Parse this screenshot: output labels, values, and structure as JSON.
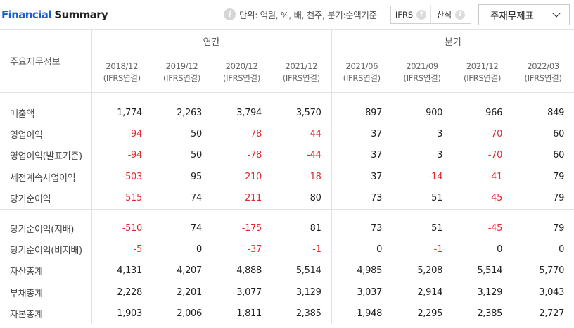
{
  "header": {
    "title_part1": "Financial",
    "title_part2": " Summary",
    "info_icon": "info-icon",
    "unit_text": "단위: 억원, %, 배, 천주, 분기:순액기준",
    "toggle_ifrs": "IFRS",
    "toggle_sansik": "산식",
    "help_icon": "?",
    "statement_select": "주재무제표"
  },
  "table": {
    "corner_label": "주요재무정보",
    "group_annual": "연간",
    "group_quarter": "분기",
    "periods": [
      {
        "date": "2018/12",
        "basis": "(IFRS연결)"
      },
      {
        "date": "2019/12",
        "basis": "(IFRS연결)"
      },
      {
        "date": "2020/12",
        "basis": "(IFRS연결)"
      },
      {
        "date": "2021/12",
        "basis": "(IFRS연결)"
      },
      {
        "date": "2021/06",
        "basis": "(IFRS연결)"
      },
      {
        "date": "2021/09",
        "basis": "(IFRS연결)"
      },
      {
        "date": "2021/12",
        "basis": "(IFRS연결)"
      },
      {
        "date": "2022/03",
        "basis": "(IFRS연결)"
      }
    ],
    "rows": [
      {
        "label": "매출액",
        "values": [
          "1,774",
          "2,263",
          "3,794",
          "3,570",
          "897",
          "900",
          "966",
          "849"
        ]
      },
      {
        "label": "영업이익",
        "values": [
          "-94",
          "50",
          "-78",
          "-44",
          "37",
          "3",
          "-70",
          "60"
        ]
      },
      {
        "label": "영업이익(발표기준)",
        "values": [
          "-94",
          "50",
          "-78",
          "-44",
          "37",
          "3",
          "-70",
          "60"
        ]
      },
      {
        "label": "세전계속사업이익",
        "values": [
          "-503",
          "95",
          "-210",
          "-18",
          "37",
          "-14",
          "-41",
          "79"
        ]
      },
      {
        "label": "당기순이익",
        "values": [
          "-515",
          "74",
          "-211",
          "80",
          "73",
          "51",
          "-45",
          "79"
        ]
      },
      {
        "label": "당기순이익(지배)",
        "values": [
          "-510",
          "74",
          "-175",
          "81",
          "73",
          "51",
          "-45",
          "79"
        ]
      },
      {
        "label": "당기순이익(비지배)",
        "values": [
          "-5",
          "0",
          "-37",
          "-1",
          "0",
          "-1",
          "0",
          "0"
        ]
      },
      {
        "label": "자산총계",
        "values": [
          "4,131",
          "4,207",
          "4,888",
          "5,514",
          "4,985",
          "5,208",
          "5,514",
          "5,770"
        ]
      },
      {
        "label": "부채총계",
        "values": [
          "2,228",
          "2,201",
          "3,077",
          "3,129",
          "3,037",
          "2,914",
          "3,129",
          "3,043"
        ]
      },
      {
        "label": "자본총계",
        "values": [
          "1,903",
          "2,006",
          "1,811",
          "2,385",
          "1,948",
          "2,295",
          "2,385",
          "2,727"
        ]
      }
    ]
  },
  "colors": {
    "title_accent": "#1e5bd6",
    "negative": "#e2292f",
    "border": "#e2e2e2"
  }
}
